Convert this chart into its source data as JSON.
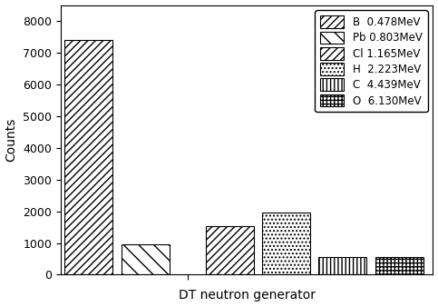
{
  "labels": [
    "B  0.478MeV",
    "Pb 0.803MeV",
    "Cl 1.165MeV",
    "H  2.223MeV",
    "C  4.439MeV",
    "O  6.130MeV"
  ],
  "values": [
    7400,
    950,
    1520,
    1950,
    550,
    550
  ],
  "x_positions": [
    0.5,
    1.5,
    3.0,
    4.0,
    5.0,
    6.0
  ],
  "bar_width": 0.85,
  "xlabel": "DT neutron generator",
  "ylabel": "Counts",
  "ylim": [
    0,
    8500
  ],
  "yticks": [
    0,
    1000,
    2000,
    3000,
    4000,
    5000,
    6000,
    7000,
    8000
  ],
  "facecolor": "white",
  "edgecolor": "black",
  "legend_loc": "upper right",
  "legend_fontsize": 8.5,
  "tick_label_fontsize": 9,
  "xlabel_fontsize": 10,
  "ylabel_fontsize": 10
}
